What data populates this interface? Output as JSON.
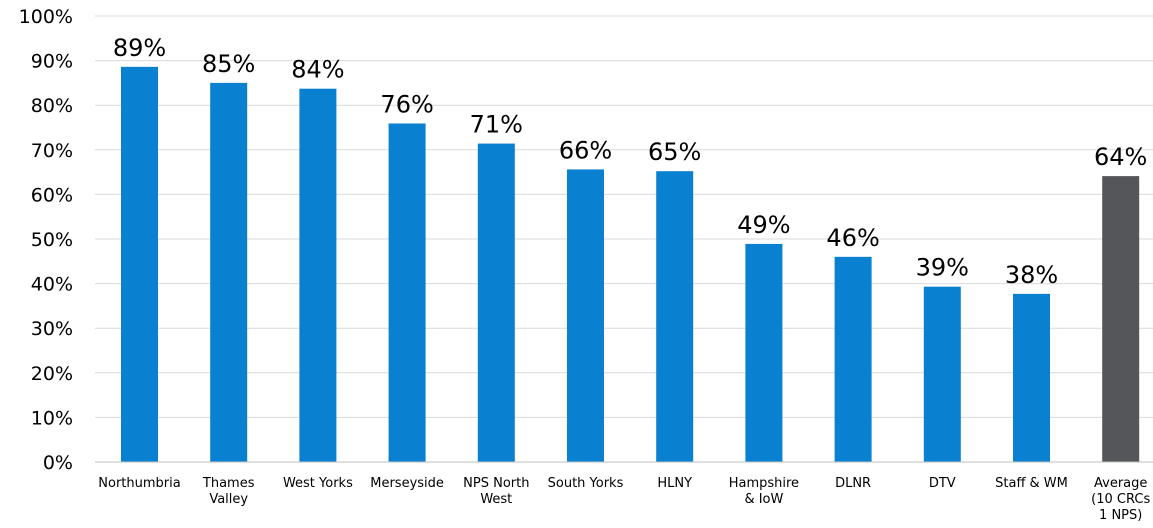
{
  "chart_data": {
    "type": "bar",
    "categories": [
      [
        "Northumbria"
      ],
      [
        "Thames",
        "Valley"
      ],
      [
        "West Yorks"
      ],
      [
        "Merseyside"
      ],
      [
        "NPS North",
        "West"
      ],
      [
        "South Yorks"
      ],
      [
        "HLNY"
      ],
      [
        "Hampshire",
        "& IoW"
      ],
      [
        "DLNR"
      ],
      [
        "DTV"
      ],
      [
        "Staff & WM"
      ],
      [
        "Average",
        "(10 CRCs",
        "1 NPS)"
      ]
    ],
    "values": [
      88.6,
      85,
      83.7,
      75.9,
      71.4,
      65.6,
      65.2,
      48.9,
      46,
      39.3,
      37.7,
      64.1
    ],
    "data_labels": [
      "89%",
      "85%",
      "84%",
      "76%",
      "71%",
      "66%",
      "65%",
      "49%",
      "46%",
      "39%",
      "38%",
      "64%"
    ],
    "bar_colors": [
      "#0a80d0",
      "#0a80d0",
      "#0a80d0",
      "#0a80d0",
      "#0a80d0",
      "#0a80d0",
      "#0a80d0",
      "#0a80d0",
      "#0a80d0",
      "#0a80d0",
      "#0a80d0",
      "#55565a"
    ],
    "ylim": [
      0,
      100
    ],
    "yticks": [
      0,
      10,
      20,
      30,
      40,
      50,
      60,
      70,
      80,
      90,
      100
    ],
    "ytick_labels": [
      "0%",
      "10%",
      "20%",
      "30%",
      "40%",
      "50%",
      "60%",
      "70%",
      "80%",
      "90%",
      "100%"
    ],
    "grid": true,
    "title": "",
    "xlabel": "",
    "ylabel": ""
  }
}
